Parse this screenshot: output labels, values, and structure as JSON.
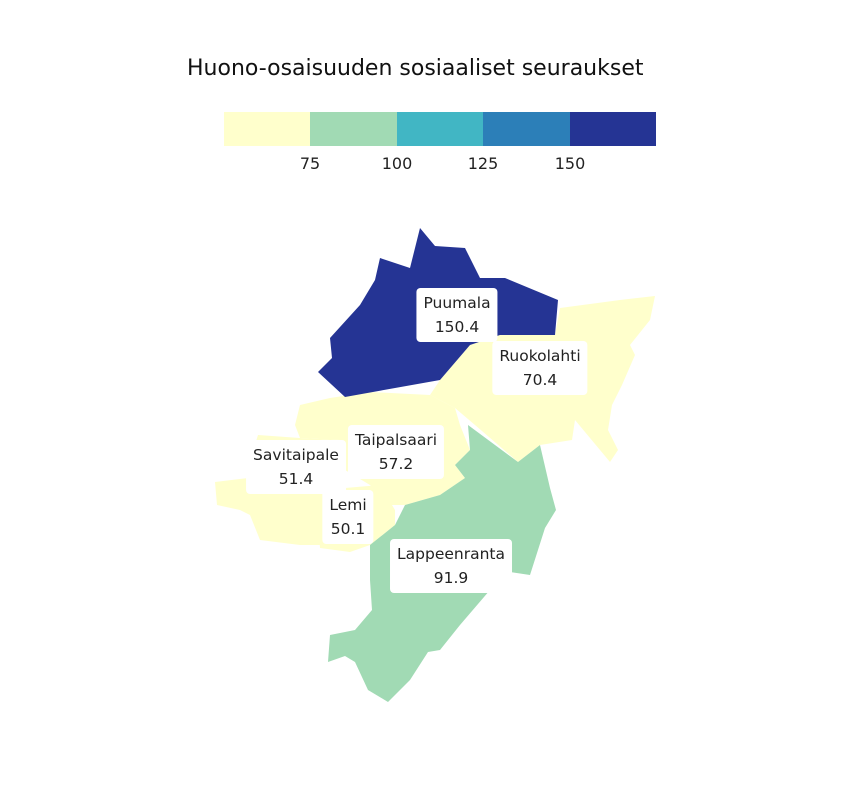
{
  "title": "Huono-osaisuuden sosiaaliset seuraukset",
  "legend": {
    "colors": [
      "#ffffcc",
      "#a1dab4",
      "#41b6c4",
      "#2c7fb8",
      "#253494"
    ],
    "ticks": [
      "75",
      "100",
      "125",
      "150"
    ]
  },
  "regions": [
    {
      "name": "Puumala",
      "value": "150.4",
      "color": "#253494"
    },
    {
      "name": "Ruokolahti",
      "value": "70.4",
      "color": "#ffffcc"
    },
    {
      "name": "Taipalsaari",
      "value": "57.2",
      "color": "#ffffcc"
    },
    {
      "name": "Savitaipale",
      "value": "51.4",
      "color": "#ffffcc"
    },
    {
      "name": "Lemi",
      "value": "50.1",
      "color": "#ffffcc"
    },
    {
      "name": "Lappeenranta",
      "value": "91.9",
      "color": "#a1dab4"
    }
  ]
}
